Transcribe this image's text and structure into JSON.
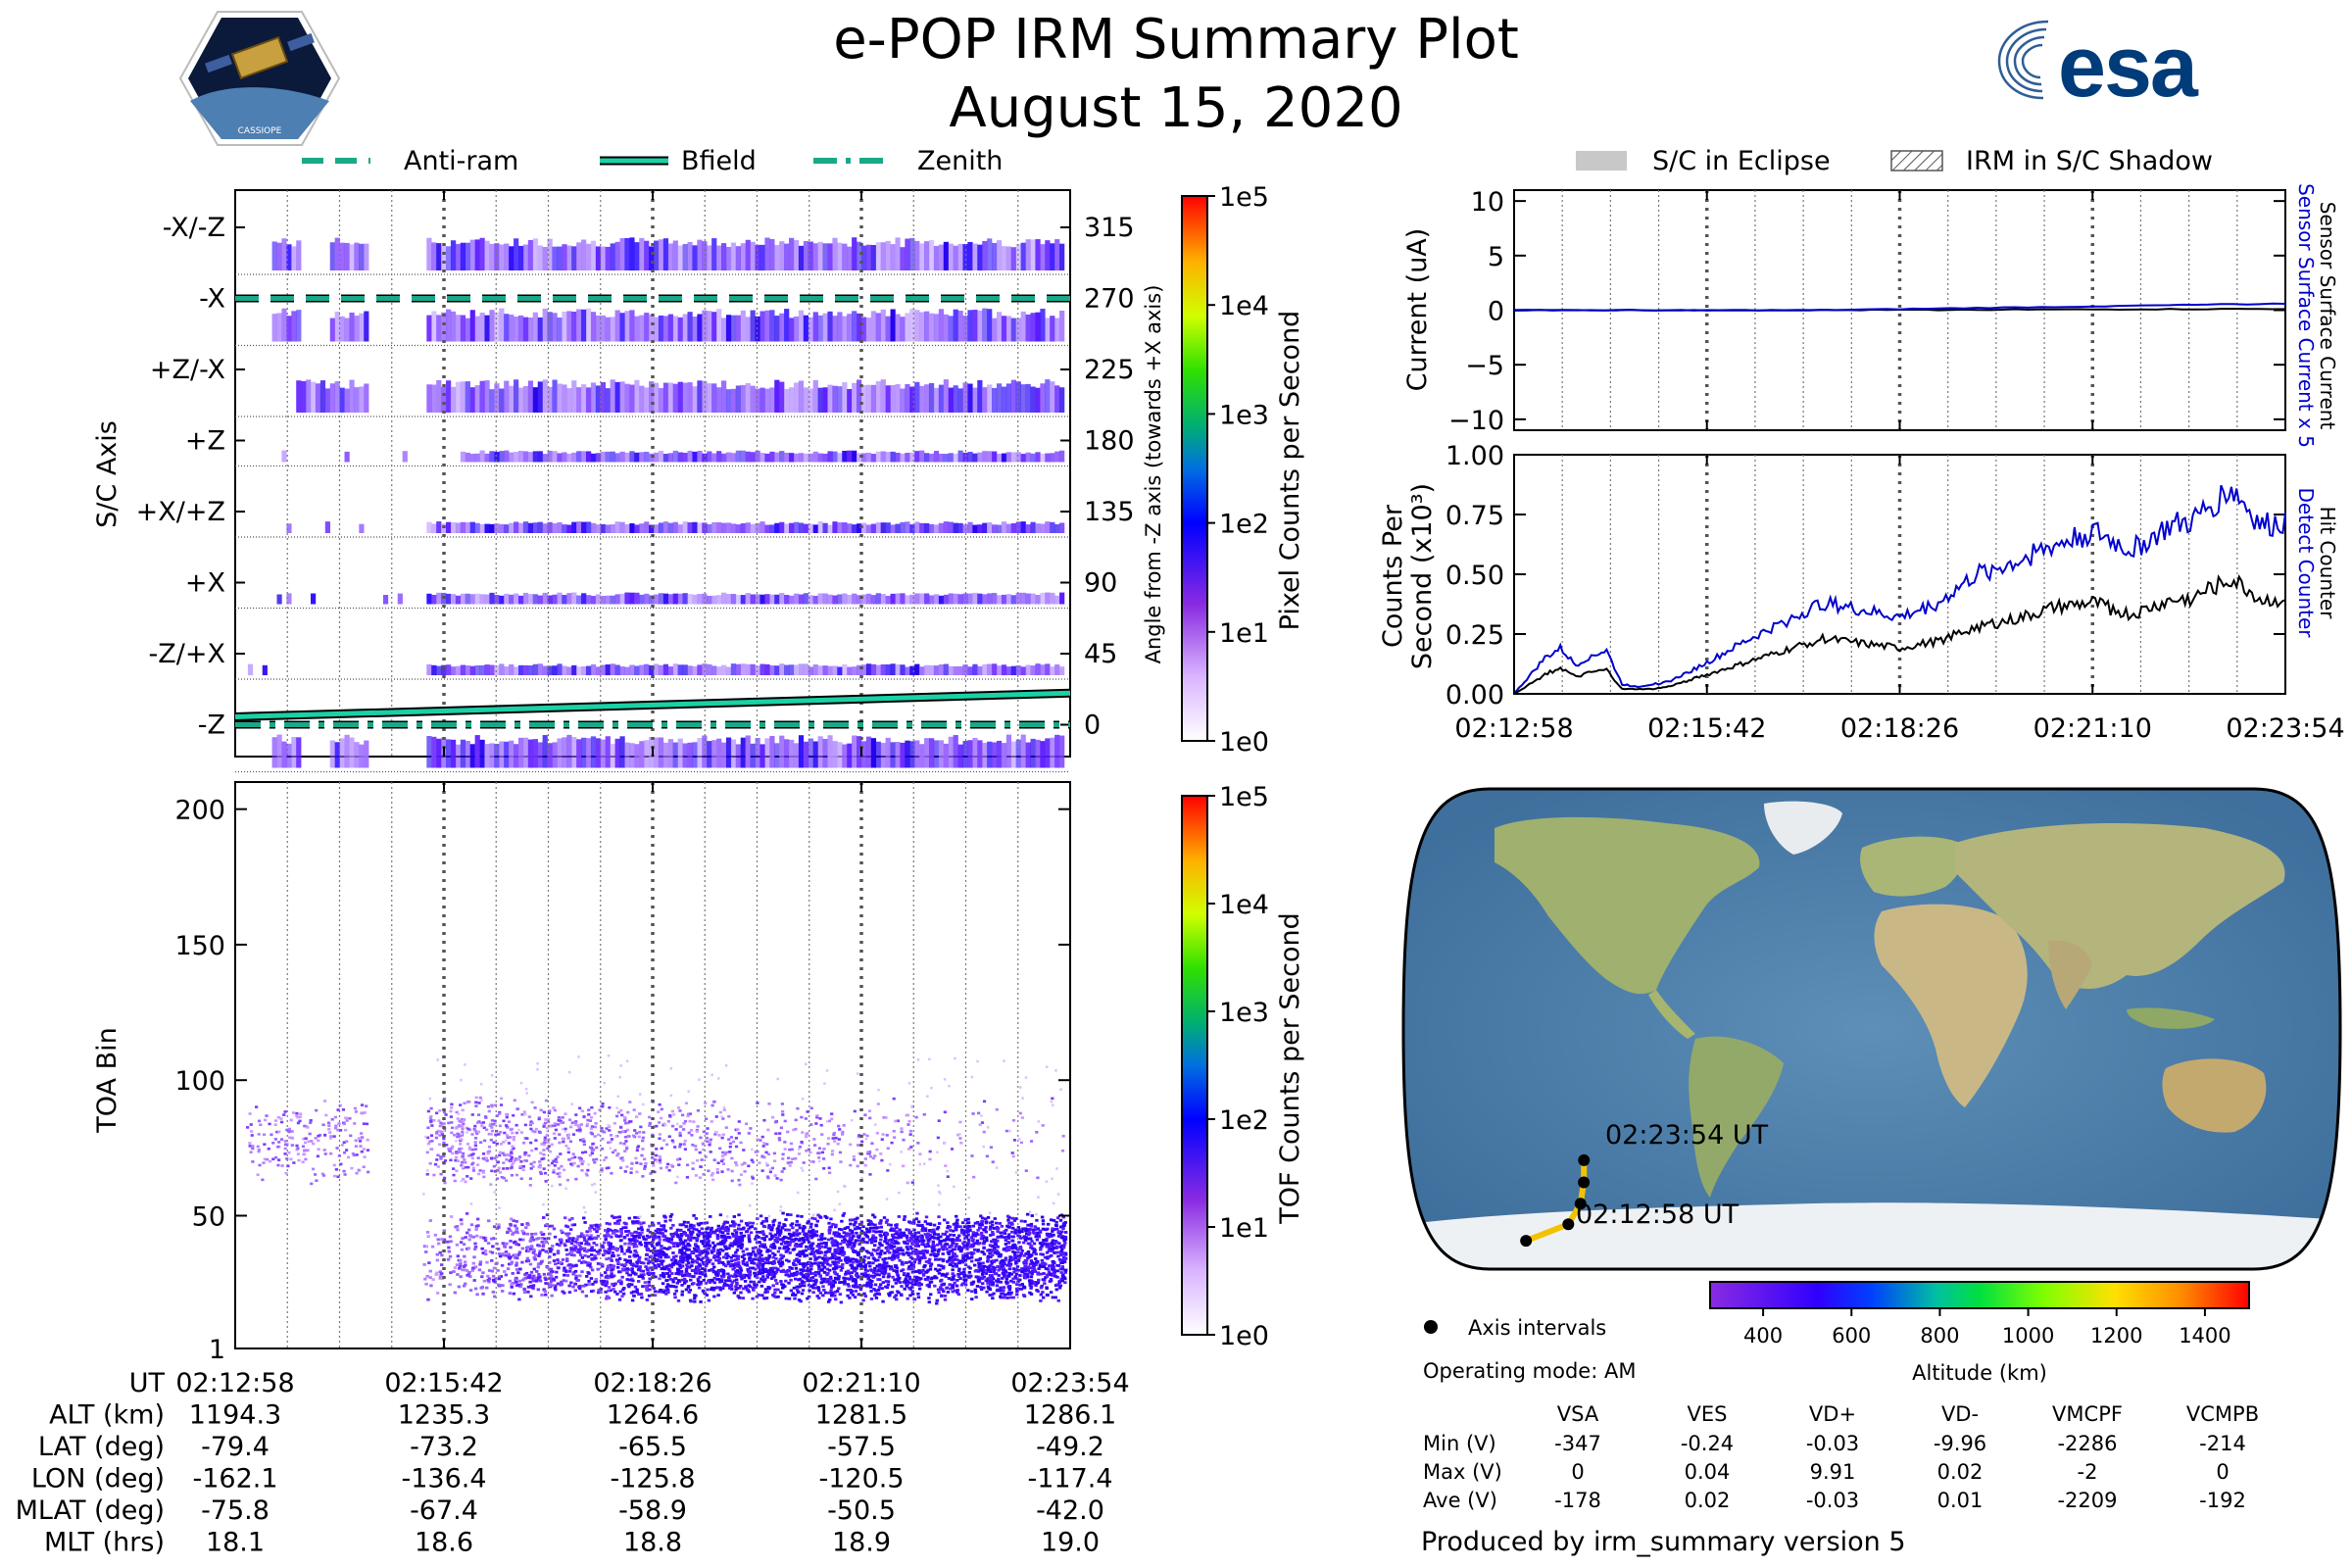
{
  "header": {
    "title": "e-POP IRM Summary Plot",
    "date": "August 15, 2020",
    "left_logo_caption": "CASSIOPE",
    "right_logo_text": "esa"
  },
  "left_legend": {
    "items": [
      "Anti-ram",
      "Bfield",
      "Zenith"
    ]
  },
  "right_legend": {
    "items": [
      "S/C in Eclipse",
      "IRM in S/C Shadow"
    ]
  },
  "colors": {
    "anti_ram": "#1aa889",
    "bfield": "#1ad1a6",
    "zenith": "#1aa889",
    "counts_blue": "#0000cc",
    "eclipse_gray": "#c8c8c8",
    "rainbow": [
      "#ffffff",
      "#cc99ff",
      "#7a1aff",
      "#0000ff",
      "#00b0d0",
      "#00c850",
      "#50ff00",
      "#e0ff00",
      "#ffb000",
      "#ff0000"
    ]
  },
  "chart_data": [
    {
      "id": "pixel-panel",
      "type": "heatmap",
      "ylabel": "S/C Axis",
      "yticks": [
        "-X/-Z",
        "-X",
        "+Z/-X",
        "+Z",
        "+X/+Z",
        "+X",
        "-Z/+X",
        "-Z"
      ],
      "y2label": "Angle from -Z axis (towards +X axis)",
      "y2ticks": [
        "315",
        "270",
        "225",
        "180",
        "135",
        "90",
        "45",
        "0"
      ],
      "y2_values": [
        315,
        270,
        225,
        180,
        135,
        90,
        45,
        0
      ],
      "colorbar": {
        "label": "Pixel Counts per Second",
        "ticks": [
          "1e5",
          "1e4",
          "1e3",
          "1e2",
          "1e1",
          "1e0"
        ]
      },
      "rows": [
        {
          "axis": "-X/-Z",
          "gap_bins": [
            0.0,
            0.15
          ],
          "level": 1.3
        },
        {
          "axis": "-X",
          "level": 1.3
        },
        {
          "axis": "+Z/-X",
          "level": 1.6
        },
        {
          "axis": "+Z",
          "level": 1.0
        },
        {
          "axis": "+X/+Z",
          "level": 0.9
        },
        {
          "axis": "+X",
          "level": 0.8
        },
        {
          "axis": "-Z/+X",
          "level": 0.9
        },
        {
          "axis": "-Z",
          "level": 1.2
        }
      ],
      "anti_ram_angle_deg": 270,
      "zenith_angle_deg": 0,
      "bfield_angle_deg": {
        "start": 5,
        "end": 20
      }
    },
    {
      "id": "toa-panel",
      "type": "heatmap",
      "ylabel": "TOA Bin",
      "ytick_labels": [
        "1",
        "50",
        "100",
        "150",
        "200"
      ],
      "yticks": [
        1,
        50,
        100,
        150,
        200
      ],
      "ylim": [
        1,
        210
      ],
      "colorbar": {
        "label": "TOF Counts per Second",
        "ticks": [
          "1e5",
          "1e4",
          "1e3",
          "1e2",
          "1e1",
          "1e0"
        ]
      },
      "upper_band_center": 78,
      "lower_band_center": 35
    },
    {
      "id": "current-panel",
      "type": "line",
      "ylabel": "Current (uA)",
      "yticks": [
        "10",
        "5",
        "0",
        "−5",
        "−10"
      ],
      "ytick_values": [
        10,
        5,
        0,
        -5,
        -10
      ],
      "ylim": [
        -11,
        11
      ],
      "right_label_top": "Sensor Surface Current x 5",
      "right_label_bottom": "Sensor Surface Current",
      "series": [
        {
          "name": "Sensor Surface Current x 5",
          "color": "#0000cc",
          "start": 0.0,
          "end": 0.6
        },
        {
          "name": "Sensor Surface Current",
          "color": "#000000",
          "start": 0.0,
          "end": 0.12
        }
      ]
    },
    {
      "id": "counts-panel",
      "type": "line",
      "ylabel_1": "Counts Per",
      "ylabel_2": "Second (x10³)",
      "yticks": [
        "1.00",
        "0.75",
        "0.50",
        "0.25",
        "0.00"
      ],
      "ytick_values": [
        1.0,
        0.75,
        0.5,
        0.25,
        0.0
      ],
      "ylim": [
        0,
        1.0
      ],
      "xticks": [
        "02:12:58",
        "02:15:42",
        "02:18:26",
        "02:21:10",
        "02:23:54"
      ],
      "right_label_top": "Detect Counter",
      "right_label_bottom": "Hit Counter",
      "series": [
        {
          "name": "Detect Counter",
          "color": "#0000cc",
          "x": [
            0,
            0.04,
            0.06,
            0.08,
            0.1,
            0.12,
            0.14,
            0.16,
            0.18,
            0.2,
            0.25,
            0.3,
            0.35,
            0.4,
            0.45,
            0.5,
            0.55,
            0.6,
            0.65,
            0.7,
            0.75,
            0.8,
            0.85,
            0.88,
            0.9,
            0.93,
            0.95,
            0.97,
            1.0
          ],
          "y": [
            0.0,
            0.15,
            0.19,
            0.12,
            0.16,
            0.18,
            0.04,
            0.03,
            0.04,
            0.05,
            0.13,
            0.22,
            0.3,
            0.38,
            0.35,
            0.32,
            0.38,
            0.5,
            0.55,
            0.62,
            0.68,
            0.6,
            0.7,
            0.72,
            0.78,
            0.86,
            0.78,
            0.7,
            0.72
          ]
        },
        {
          "name": "Hit Counter",
          "color": "#000000",
          "x": [
            0,
            0.04,
            0.06,
            0.08,
            0.1,
            0.12,
            0.14,
            0.16,
            0.18,
            0.2,
            0.25,
            0.3,
            0.35,
            0.4,
            0.45,
            0.5,
            0.55,
            0.6,
            0.65,
            0.7,
            0.75,
            0.8,
            0.85,
            0.88,
            0.9,
            0.93,
            0.95,
            0.97,
            1.0
          ],
          "y": [
            0.0,
            0.08,
            0.11,
            0.07,
            0.09,
            0.1,
            0.02,
            0.02,
            0.02,
            0.03,
            0.08,
            0.13,
            0.18,
            0.23,
            0.21,
            0.19,
            0.22,
            0.28,
            0.31,
            0.36,
            0.38,
            0.33,
            0.39,
            0.4,
            0.44,
            0.48,
            0.44,
            0.39,
            0.4
          ]
        }
      ]
    },
    {
      "id": "map-panel",
      "type": "scatter",
      "labels": [
        "02:23:54 UT",
        "02:12:58 UT"
      ],
      "track_lon": [
        -162.1,
        -136.4,
        -125.8,
        -120.5,
        -117.4
      ],
      "track_lat": [
        -79.4,
        -73.2,
        -65.5,
        -57.5,
        -49.2
      ],
      "colorbar": {
        "label": "Altitude (km)",
        "ticks": [
          "400",
          "600",
          "800",
          "1000",
          "1200",
          "1400"
        ],
        "tick_values": [
          400,
          600,
          800,
          1000,
          1200,
          1400
        ],
        "range": [
          280,
          1500
        ]
      }
    }
  ],
  "time_axis": [
    "02:12:58",
    "02:15:42",
    "02:18:26",
    "02:21:10",
    "02:23:54"
  ],
  "ephemeris": {
    "rows": [
      {
        "label": "UT",
        "values": [
          "02:12:58",
          "02:15:42",
          "02:18:26",
          "02:21:10",
          "02:23:54"
        ]
      },
      {
        "label": "ALT (km)",
        "values": [
          "1194.3",
          "1235.3",
          "1264.6",
          "1281.5",
          "1286.1"
        ]
      },
      {
        "label": "LAT (deg)",
        "values": [
          "-79.4",
          "-73.2",
          "-65.5",
          "-57.5",
          "-49.2"
        ]
      },
      {
        "label": "LON (deg)",
        "values": [
          "-162.1",
          "-136.4",
          "-125.8",
          "-120.5",
          "-117.4"
        ]
      },
      {
        "label": "MLAT (deg)",
        "values": [
          "-75.8",
          "-67.4",
          "-58.9",
          "-50.5",
          "-42.0"
        ]
      },
      {
        "label": "MLT (hrs)",
        "values": [
          "18.1",
          "18.6",
          "18.8",
          "18.9",
          "19.0"
        ]
      }
    ]
  },
  "info": {
    "axis_intervals": "Axis intervals",
    "operating_mode": "Operating mode: AM",
    "voltage_table": {
      "headers": [
        "VSA",
        "VES",
        "VD+",
        "VD-",
        "VMCPF",
        "VCMPB"
      ],
      "rows": [
        {
          "label": "Min (V)",
          "values": [
            "-347",
            "-0.24",
            "-0.03",
            "-9.96",
            "-2286",
            "-214"
          ]
        },
        {
          "label": "Max (V)",
          "values": [
            "0",
            "0.04",
            "9.91",
            "0.02",
            "-2",
            "0"
          ]
        },
        {
          "label": "Ave (V)",
          "values": [
            "-178",
            "0.02",
            "-0.03",
            "0.01",
            "-2209",
            "-192"
          ]
        }
      ]
    },
    "produced_by": "Produced by irm_summary version 5"
  }
}
